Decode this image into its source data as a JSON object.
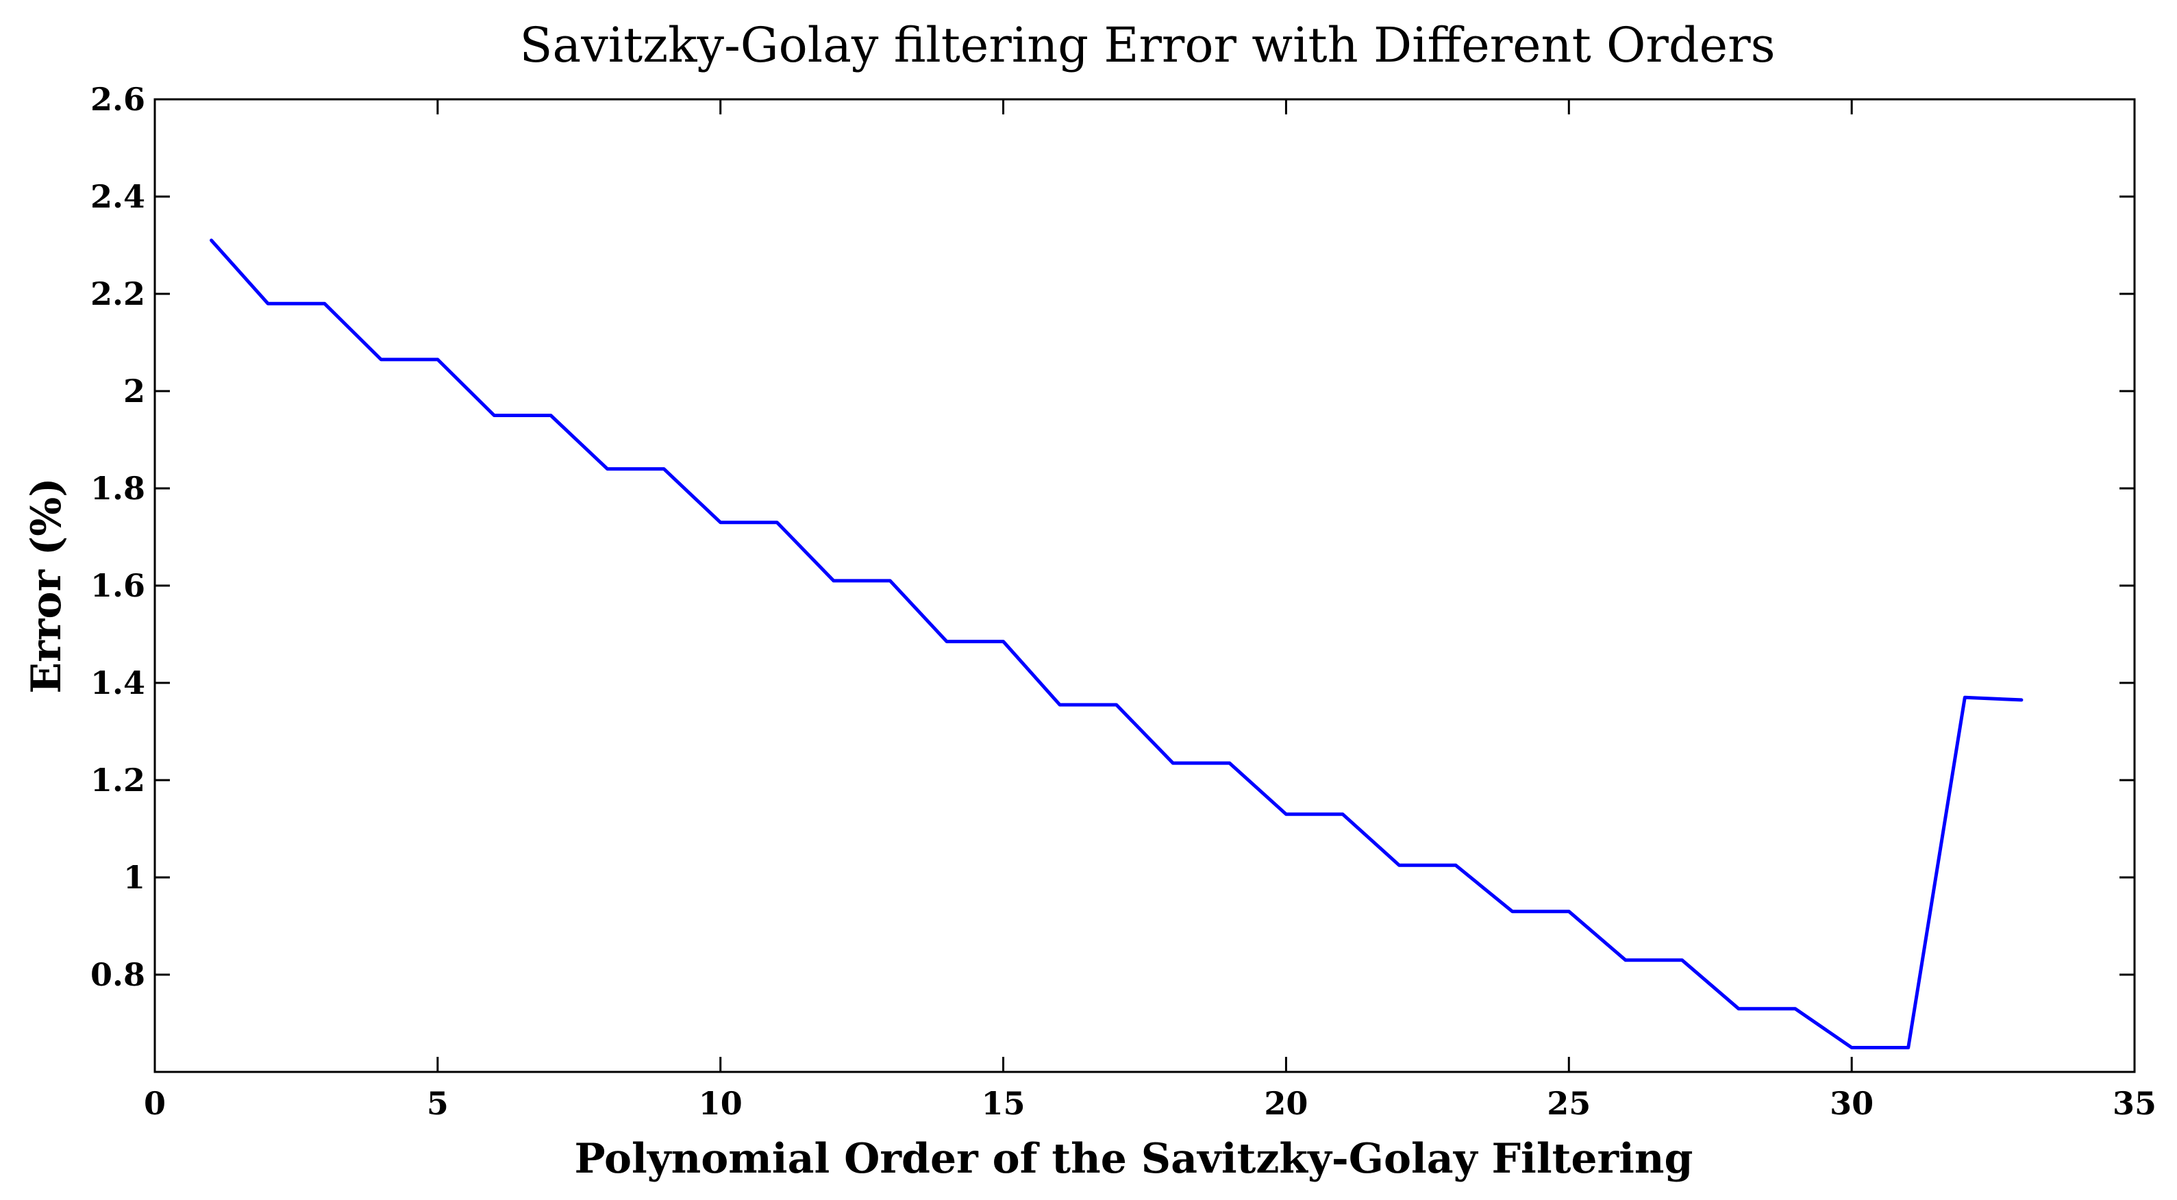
{
  "chart_data": {
    "type": "line",
    "title": "Savitzky-Golay filtering Error with Different Orders",
    "xlabel": "Polynomial Order of the Savitzky-Golay Filtering",
    "ylabel": "Error (%)",
    "xlim": [
      0,
      35
    ],
    "ylim": [
      0.6,
      2.6
    ],
    "xticks": [
      0,
      5,
      10,
      15,
      20,
      25,
      30,
      35
    ],
    "xtick_labels": [
      "0",
      "5",
      "10",
      "15",
      "20",
      "25",
      "30",
      "35"
    ],
    "yticks": [
      0.8,
      1,
      1.2,
      1.4,
      1.6,
      1.8,
      2,
      2.2,
      2.4,
      2.6
    ],
    "ytick_labels": [
      "0.8",
      "1",
      "1.2",
      "1.4",
      "1.6",
      "1.8",
      "2",
      "2.2",
      "2.4",
      "2.6"
    ],
    "grid": false,
    "legend": "none",
    "series": [
      {
        "color": "#0000ff",
        "x": [
          1,
          2,
          3,
          4,
          5,
          6,
          7,
          8,
          9,
          10,
          11,
          12,
          13,
          14,
          15,
          16,
          17,
          18,
          19,
          20,
          21,
          22,
          23,
          24,
          25,
          26,
          27,
          28,
          29,
          30,
          31,
          32,
          33
        ],
        "y": [
          2.31,
          2.18,
          2.18,
          2.065,
          2.065,
          1.95,
          1.95,
          1.84,
          1.84,
          1.73,
          1.73,
          1.61,
          1.61,
          1.485,
          1.485,
          1.355,
          1.355,
          1.235,
          1.235,
          1.13,
          1.13,
          1.025,
          1.025,
          0.93,
          0.93,
          0.83,
          0.83,
          0.73,
          0.73,
          0.65,
          0.65,
          1.37,
          1.365
        ]
      }
    ]
  }
}
